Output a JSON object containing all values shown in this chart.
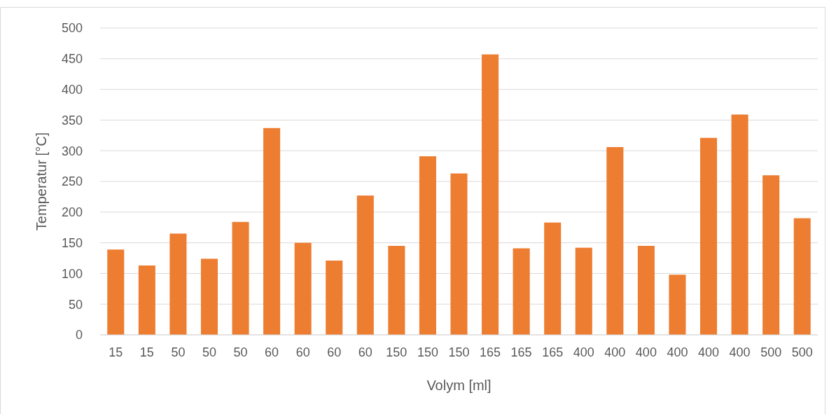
{
  "chart_data": {
    "type": "bar",
    "xlabel": "Volym [ml]",
    "ylabel": "Temperatur [°C]",
    "categories": [
      "15",
      "15",
      "50",
      "50",
      "50",
      "60",
      "60",
      "60",
      "60",
      "150",
      "150",
      "150",
      "165",
      "165",
      "165",
      "400",
      "400",
      "400",
      "400",
      "400",
      "400",
      "500",
      "500"
    ],
    "values": [
      139,
      113,
      165,
      124,
      184,
      337,
      150,
      121,
      227,
      145,
      291,
      263,
      457,
      141,
      183,
      142,
      306,
      145,
      98,
      321,
      359,
      260,
      190
    ],
    "color": "#ed7d31",
    "ylim": [
      0,
      500
    ],
    "yticks": [
      0,
      50,
      100,
      150,
      200,
      250,
      300,
      350,
      400,
      450,
      500
    ],
    "grid": "y"
  }
}
